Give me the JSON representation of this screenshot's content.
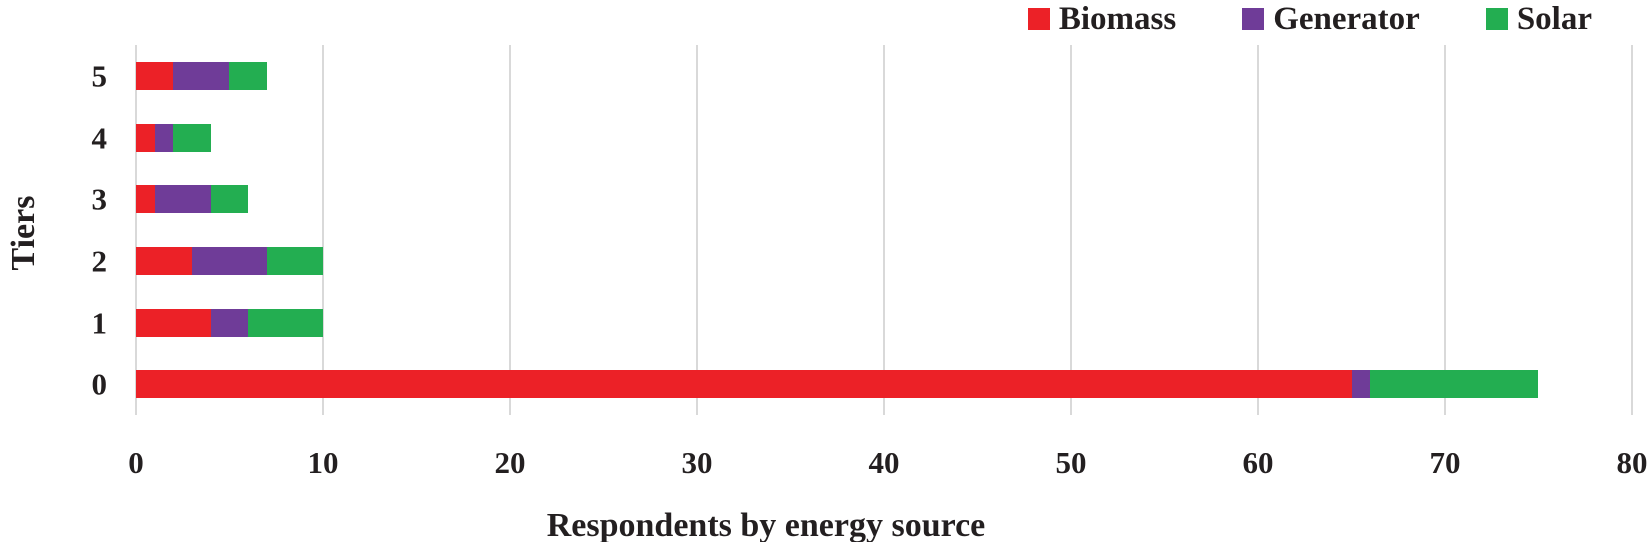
{
  "chart_data": {
    "type": "bar",
    "orientation": "horizontal",
    "stacked": true,
    "title": "",
    "xlabel": "Respondents by energy source",
    "ylabel": "Tiers",
    "xlim": [
      0,
      80
    ],
    "xticks": [
      0,
      10,
      20,
      30,
      40,
      50,
      60,
      70,
      80
    ],
    "grid": "vertical-only",
    "legend_position": "top-right",
    "categories": [
      "5",
      "4",
      "3",
      "2",
      "1",
      "0"
    ],
    "series": [
      {
        "name": "Biomass",
        "color": "#EC2127",
        "values": [
          2,
          1,
          1,
          3,
          4,
          65
        ]
      },
      {
        "name": "Generator",
        "color": "#6F3C98",
        "values": [
          3,
          1,
          3,
          4,
          2,
          1
        ]
      },
      {
        "name": "Solar",
        "color": "#23AE51",
        "values": [
          2,
          2,
          2,
          3,
          4,
          9
        ]
      }
    ],
    "totals_by_tier": {
      "5": 7,
      "4": 4,
      "3": 6,
      "2": 10,
      "1": 10,
      "0": 75
    },
    "colors": {
      "gridline": "#D9D9D9",
      "text": "#231F20"
    }
  }
}
